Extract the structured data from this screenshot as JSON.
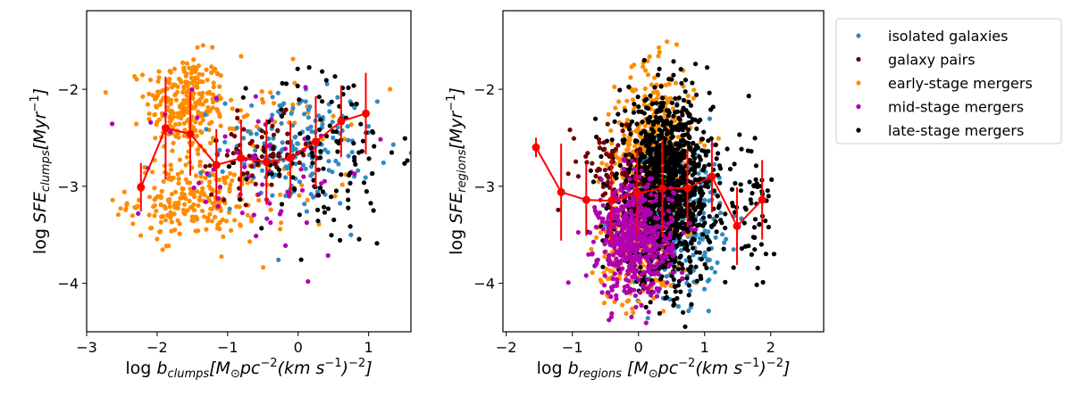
{
  "chart_data": [
    {
      "type": "scatter",
      "xlim": [
        -3,
        1.6
      ],
      "ylim": [
        -4.5,
        -1.19
      ],
      "xticks": [
        "−3",
        "−2",
        "−1",
        "0",
        "1"
      ],
      "xtick_values": [
        -3,
        -2,
        -1,
        0,
        1
      ],
      "yticks": [
        "−2",
        "−3",
        "−4"
      ],
      "ytick_values": [
        -2,
        -3,
        -4
      ],
      "xlabel_parts": [
        {
          "t": "log ",
          "s": "n"
        },
        {
          "t": "b",
          "s": "i"
        },
        {
          "t": "clumps",
          "s": "sub"
        },
        {
          "t": "[M",
          "s": "i"
        },
        {
          "t": "⊙",
          "s": "sub"
        },
        {
          "t": "pc",
          "s": "i"
        },
        {
          "t": "−2",
          "s": "sup"
        },
        {
          "t": "(km s",
          "s": "i"
        },
        {
          "t": "−1",
          "s": "sup"
        },
        {
          "t": ")",
          "s": "i"
        },
        {
          "t": "−2",
          "s": "sup"
        },
        {
          "t": "]",
          "s": "i"
        }
      ],
      "ylabel_parts": [
        {
          "t": "log ",
          "s": "n"
        },
        {
          "t": "SFE",
          "s": "i"
        },
        {
          "t": "clumps",
          "s": "sub"
        },
        {
          "t": "[Myr",
          "s": "i"
        },
        {
          "t": "−1",
          "s": "sup"
        },
        {
          "t": "]",
          "s": "i"
        }
      ],
      "binned_median": {
        "color": "#ff0000",
        "x": [
          -2.23,
          -1.88,
          -1.53,
          -1.16,
          -0.81,
          -0.45,
          -0.11,
          0.25,
          0.61,
          0.96
        ],
        "y": [
          -3.01,
          -2.4,
          -2.46,
          -2.78,
          -2.71,
          -2.75,
          -2.71,
          -2.54,
          -2.33,
          -2.25
        ],
        "yerr": [
          0.25,
          0.53,
          0.43,
          0.37,
          0.4,
          0.44,
          0.38,
          0.47,
          0.37,
          0.42
        ]
      },
      "grid": false
    },
    {
      "type": "scatter",
      "xlim": [
        -2.05,
        2.8
      ],
      "ylim": [
        -4.5,
        -1.19
      ],
      "xticks": [
        "−2",
        "−1",
        "0",
        "1",
        "2"
      ],
      "xtick_values": [
        -2,
        -1,
        0,
        1,
        2
      ],
      "yticks": [
        "−2",
        "−3",
        "−4"
      ],
      "ytick_values": [
        -2,
        -3,
        -4
      ],
      "xlabel_parts": [
        {
          "t": "log ",
          "s": "n"
        },
        {
          "t": "b",
          "s": "i"
        },
        {
          "t": "regions",
          "s": "sub"
        },
        {
          "t": " [M",
          "s": "i"
        },
        {
          "t": "⊙",
          "s": "sub"
        },
        {
          "t": "pc",
          "s": "i"
        },
        {
          "t": "−2",
          "s": "sup"
        },
        {
          "t": "(km s",
          "s": "i"
        },
        {
          "t": "−1",
          "s": "sup"
        },
        {
          "t": ")",
          "s": "i"
        },
        {
          "t": "−2",
          "s": "sup"
        },
        {
          "t": "]",
          "s": "i"
        }
      ],
      "ylabel_parts": [
        {
          "t": "log ",
          "s": "n"
        },
        {
          "t": "SFE",
          "s": "i"
        },
        {
          "t": "regions",
          "s": "sub"
        },
        {
          "t": "[Myr",
          "s": "i"
        },
        {
          "t": "−1",
          "s": "sup"
        },
        {
          "t": "]",
          "s": "i"
        }
      ],
      "binned_median": {
        "color": "#ff0000",
        "x": [
          -1.55,
          -1.17,
          -0.79,
          -0.41,
          -0.02,
          0.36,
          0.74,
          1.11,
          1.49,
          1.87
        ],
        "y": [
          -2.6,
          -3.06,
          -3.14,
          -3.15,
          -3.07,
          -3.02,
          -3.02,
          -2.9,
          -3.41,
          -3.14
        ],
        "yerr": [
          0.1,
          0.5,
          0.37,
          0.44,
          0.44,
          0.5,
          0.4,
          0.37,
          0.4,
          0.41
        ]
      },
      "grid": false
    }
  ],
  "legend": {
    "placement": "outside-top-right",
    "items": [
      {
        "label": "isolated galaxies",
        "color": "#2f8ac4"
      },
      {
        "label": "galaxy pairs",
        "color": "#6e0000"
      },
      {
        "label": "early-stage mergers",
        "color": "#ff8c00"
      },
      {
        "label": "mid-stage mergers",
        "color": "#b000b0"
      },
      {
        "label": "late-stage mergers",
        "color": "#000000"
      }
    ]
  }
}
